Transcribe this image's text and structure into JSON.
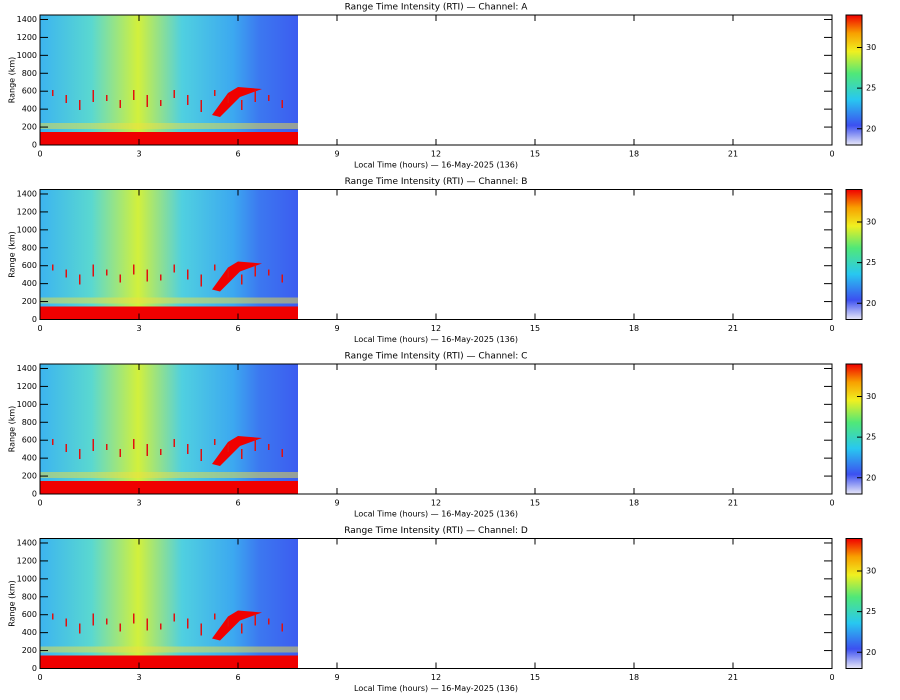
{
  "chart_data": [
    {
      "type": "heatmap",
      "title": "Range Time Intensity (RTI) — Channel: A",
      "xlabel": "Local Time (hours) — 16-May-2025 (136)",
      "ylabel": "Range (km)",
      "xlim": [
        0,
        24
      ],
      "xticks": [
        0,
        3,
        6,
        9,
        12,
        15,
        18,
        21,
        {
          "value": 24,
          "label": "0"
        }
      ],
      "ylim": [
        0,
        1450
      ],
      "yticks": [
        0,
        200,
        400,
        600,
        800,
        1000,
        1200,
        1400
      ],
      "colorbar_lim": [
        18,
        34
      ],
      "colorbar_ticks": [
        20,
        25,
        30
      ]
    },
    {
      "type": "heatmap",
      "title": "Range Time Intensity (RTI) — Channel: B",
      "xlabel": "Local Time (hours) — 16-May-2025 (136)",
      "ylabel": "Range (km)",
      "xlim": [
        0,
        24
      ],
      "xticks": [
        0,
        3,
        6,
        9,
        12,
        15,
        18,
        21,
        {
          "value": 24,
          "label": "0"
        }
      ],
      "ylim": [
        0,
        1450
      ],
      "yticks": [
        0,
        200,
        400,
        600,
        800,
        1000,
        1200,
        1400
      ],
      "colorbar_lim": [
        18,
        34
      ],
      "colorbar_ticks": [
        20,
        25,
        30
      ]
    },
    {
      "type": "heatmap",
      "title": "Range Time Intensity (RTI) — Channel: C",
      "xlabel": "Local Time (hours) — 16-May-2025 (136)",
      "ylabel": "Range (km)",
      "xlim": [
        0,
        24
      ],
      "xticks": [
        0,
        3,
        6,
        9,
        12,
        15,
        18,
        21,
        {
          "value": 24,
          "label": "0"
        }
      ],
      "ylim": [
        0,
        1450
      ],
      "yticks": [
        0,
        200,
        400,
        600,
        800,
        1000,
        1200,
        1400
      ],
      "colorbar_lim": [
        18,
        34
      ],
      "colorbar_ticks": [
        20,
        25,
        30
      ]
    },
    {
      "type": "heatmap",
      "title": "Range Time Intensity (RTI) — Channel: D",
      "xlabel": "Local Time (hours) — 16-May-2025 (136)",
      "ylabel": "Range (km)",
      "xlim": [
        0,
        24
      ],
      "xticks": [
        0,
        3,
        6,
        9,
        12,
        15,
        18,
        21,
        {
          "value": 24,
          "label": "0"
        }
      ],
      "ylim": [
        0,
        1450
      ],
      "yticks": [
        0,
        200,
        400,
        600,
        800,
        1000,
        1200,
        1400
      ],
      "colorbar_lim": [
        18,
        34
      ],
      "colorbar_ticks": [
        20,
        25,
        30
      ]
    }
  ]
}
